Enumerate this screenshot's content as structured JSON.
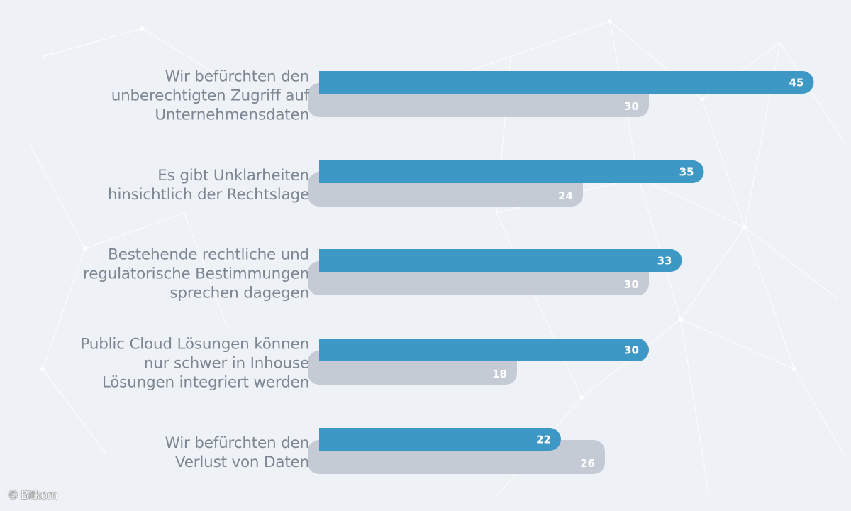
{
  "chart_data": {
    "type": "bar",
    "orientation": "horizontal",
    "categories": [
      [
        "Wir befürchten den",
        "unberechtigten Zugriff auf",
        "Unternehmensdaten"
      ],
      [
        "Es gibt Unklarheiten",
        "hinsichtlich der Rechtslage"
      ],
      [
        "Bestehende rechtliche und",
        "regulatorische Bestimmungen",
        "sprechen dagegen"
      ],
      [
        "Public Cloud Lösungen können",
        "nur schwer in Inhouse",
        "Lösungen integriert werden"
      ],
      [
        "Wir befürchten den",
        "Verlust von Daten"
      ]
    ],
    "series": [
      {
        "name": "series-1",
        "color": "#3d98c6",
        "values": [
          45,
          35,
          33,
          30,
          22
        ]
      },
      {
        "name": "series-2",
        "color": "#c5cbd5",
        "values": [
          30,
          24,
          30,
          18,
          26
        ]
      }
    ],
    "xlim": [
      0,
      45
    ],
    "title": "",
    "xlabel": "",
    "ylabel": "",
    "legend": "none",
    "grid": false
  },
  "colors": {
    "background": "#eef1f6",
    "label_text": "#7d8794",
    "value_text": "#ffffff"
  },
  "footer": {
    "copyright": "© Bitkom"
  }
}
